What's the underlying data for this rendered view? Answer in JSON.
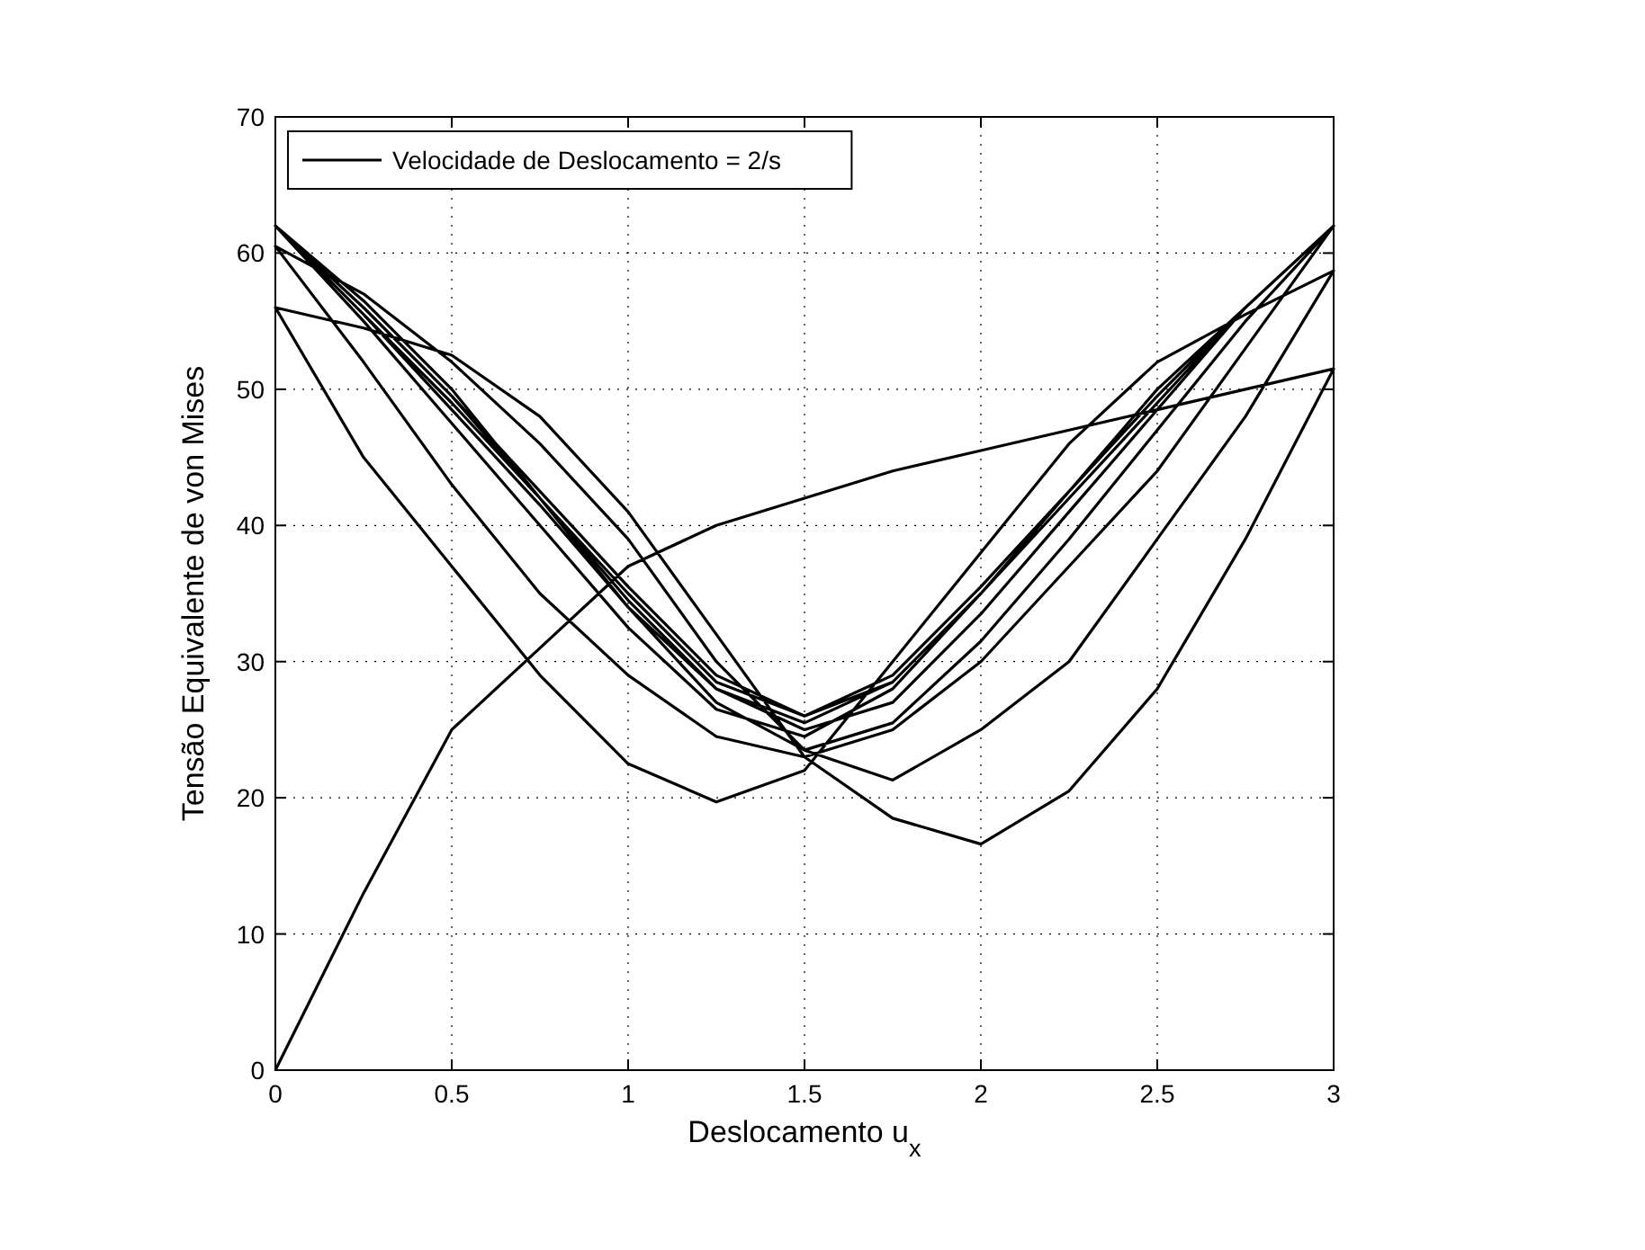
{
  "chart_data": {
    "type": "line",
    "xlabel": "Deslocamento u$_{x}$",
    "ylabel": "Tensão Equivalente de von Mises",
    "xlim": [
      0,
      3
    ],
    "ylim": [
      0,
      70
    ],
    "xticks": [
      0,
      0.5,
      1,
      1.5,
      2,
      2.5,
      3
    ],
    "yticks": [
      0,
      10,
      20,
      30,
      40,
      50,
      60,
      70
    ],
    "grid": true,
    "legend": "top left",
    "line_style": "solid",
    "series": [
      {
        "name": "Velocidade de Deslocamento = 2/s",
        "color": "#000000",
        "x": [
          0,
          0.25,
          0.5,
          0.75,
          1,
          1.25,
          1.5,
          1.75,
          2,
          2.25,
          2.5,
          2.75,
          3,
          2.75,
          2.5,
          2.25,
          2,
          1.75,
          1.5,
          1.25,
          1,
          0.75,
          0.5,
          0.25,
          0,
          0.25,
          0.5,
          0.75,
          1,
          1.25,
          1.5,
          1.75,
          2,
          2.25,
          2.5,
          2.75,
          3,
          2.75,
          2.5,
          2.25,
          2,
          1.75,
          1.5,
          1.25,
          1,
          0.75,
          0.5,
          0.25,
          0,
          0.25,
          0.5,
          0.75,
          1,
          1.25,
          1.5,
          1.75,
          2,
          2.25,
          2.5,
          2.75,
          3,
          2.75,
          2.5,
          2.25,
          2,
          1.75,
          1.5,
          1.25,
          1,
          0.75,
          0.5,
          0.25,
          0,
          0.25,
          0.5,
          0.75,
          1,
          1.25,
          1.5,
          1.75,
          2,
          2.25,
          2.5,
          2.75,
          3,
          2.75,
          2.5,
          2.25,
          2,
          1.75,
          1.5,
          1.25,
          1,
          0.75,
          0.5,
          0.25,
          0,
          0.25,
          0.5,
          0.75,
          1,
          1.25,
          1.5,
          1.75,
          2,
          2.25,
          2.5,
          2.75,
          3,
          2.75,
          2.5,
          2.25,
          2,
          1.75,
          1.5,
          1.25,
          1,
          0.75,
          0.5,
          0.25,
          0,
          0.25,
          0.5,
          0.75,
          1,
          1.25,
          1.5,
          1.75,
          2,
          2.25,
          2.5,
          2.75,
          3
        ],
        "values": [
          0,
          13,
          25,
          31,
          37,
          40,
          42,
          44,
          45.5,
          47,
          48.5,
          50,
          51.5,
          39,
          28,
          20.5,
          16.6,
          18.5,
          23,
          32,
          41,
          48,
          52.5,
          54.5,
          56,
          45,
          37,
          29,
          22.5,
          19.7,
          22,
          30,
          38,
          46,
          52,
          55.5,
          58.7,
          48,
          39,
          30,
          25,
          21.3,
          23.5,
          30,
          39,
          46,
          52,
          57,
          60.5,
          52,
          43,
          35,
          29,
          24.5,
          23,
          25,
          30,
          37,
          44,
          53,
          62,
          55,
          47,
          39,
          31.5,
          25.5,
          23.5,
          27,
          34,
          42,
          50,
          56.5,
          62,
          55,
          47.5,
          40,
          32.5,
          26.5,
          24.5,
          28,
          35,
          42.5,
          50,
          56,
          62,
          56,
          48.5,
          41,
          33.5,
          27,
          25,
          28,
          34.5,
          42,
          49.5,
          56,
          62,
          55.5,
          48.5,
          41.5,
          34,
          28,
          25.5,
          28.5,
          35,
          42.5,
          49.5,
          56,
          62,
          56,
          49,
          42,
          35,
          28.5,
          26,
          28.5,
          35,
          42,
          49,
          55.5,
          62,
          56,
          49.5,
          42.5,
          35.5,
          29,
          26,
          29,
          35.5,
          42.5,
          49.5,
          56,
          62
        ]
      }
    ]
  }
}
